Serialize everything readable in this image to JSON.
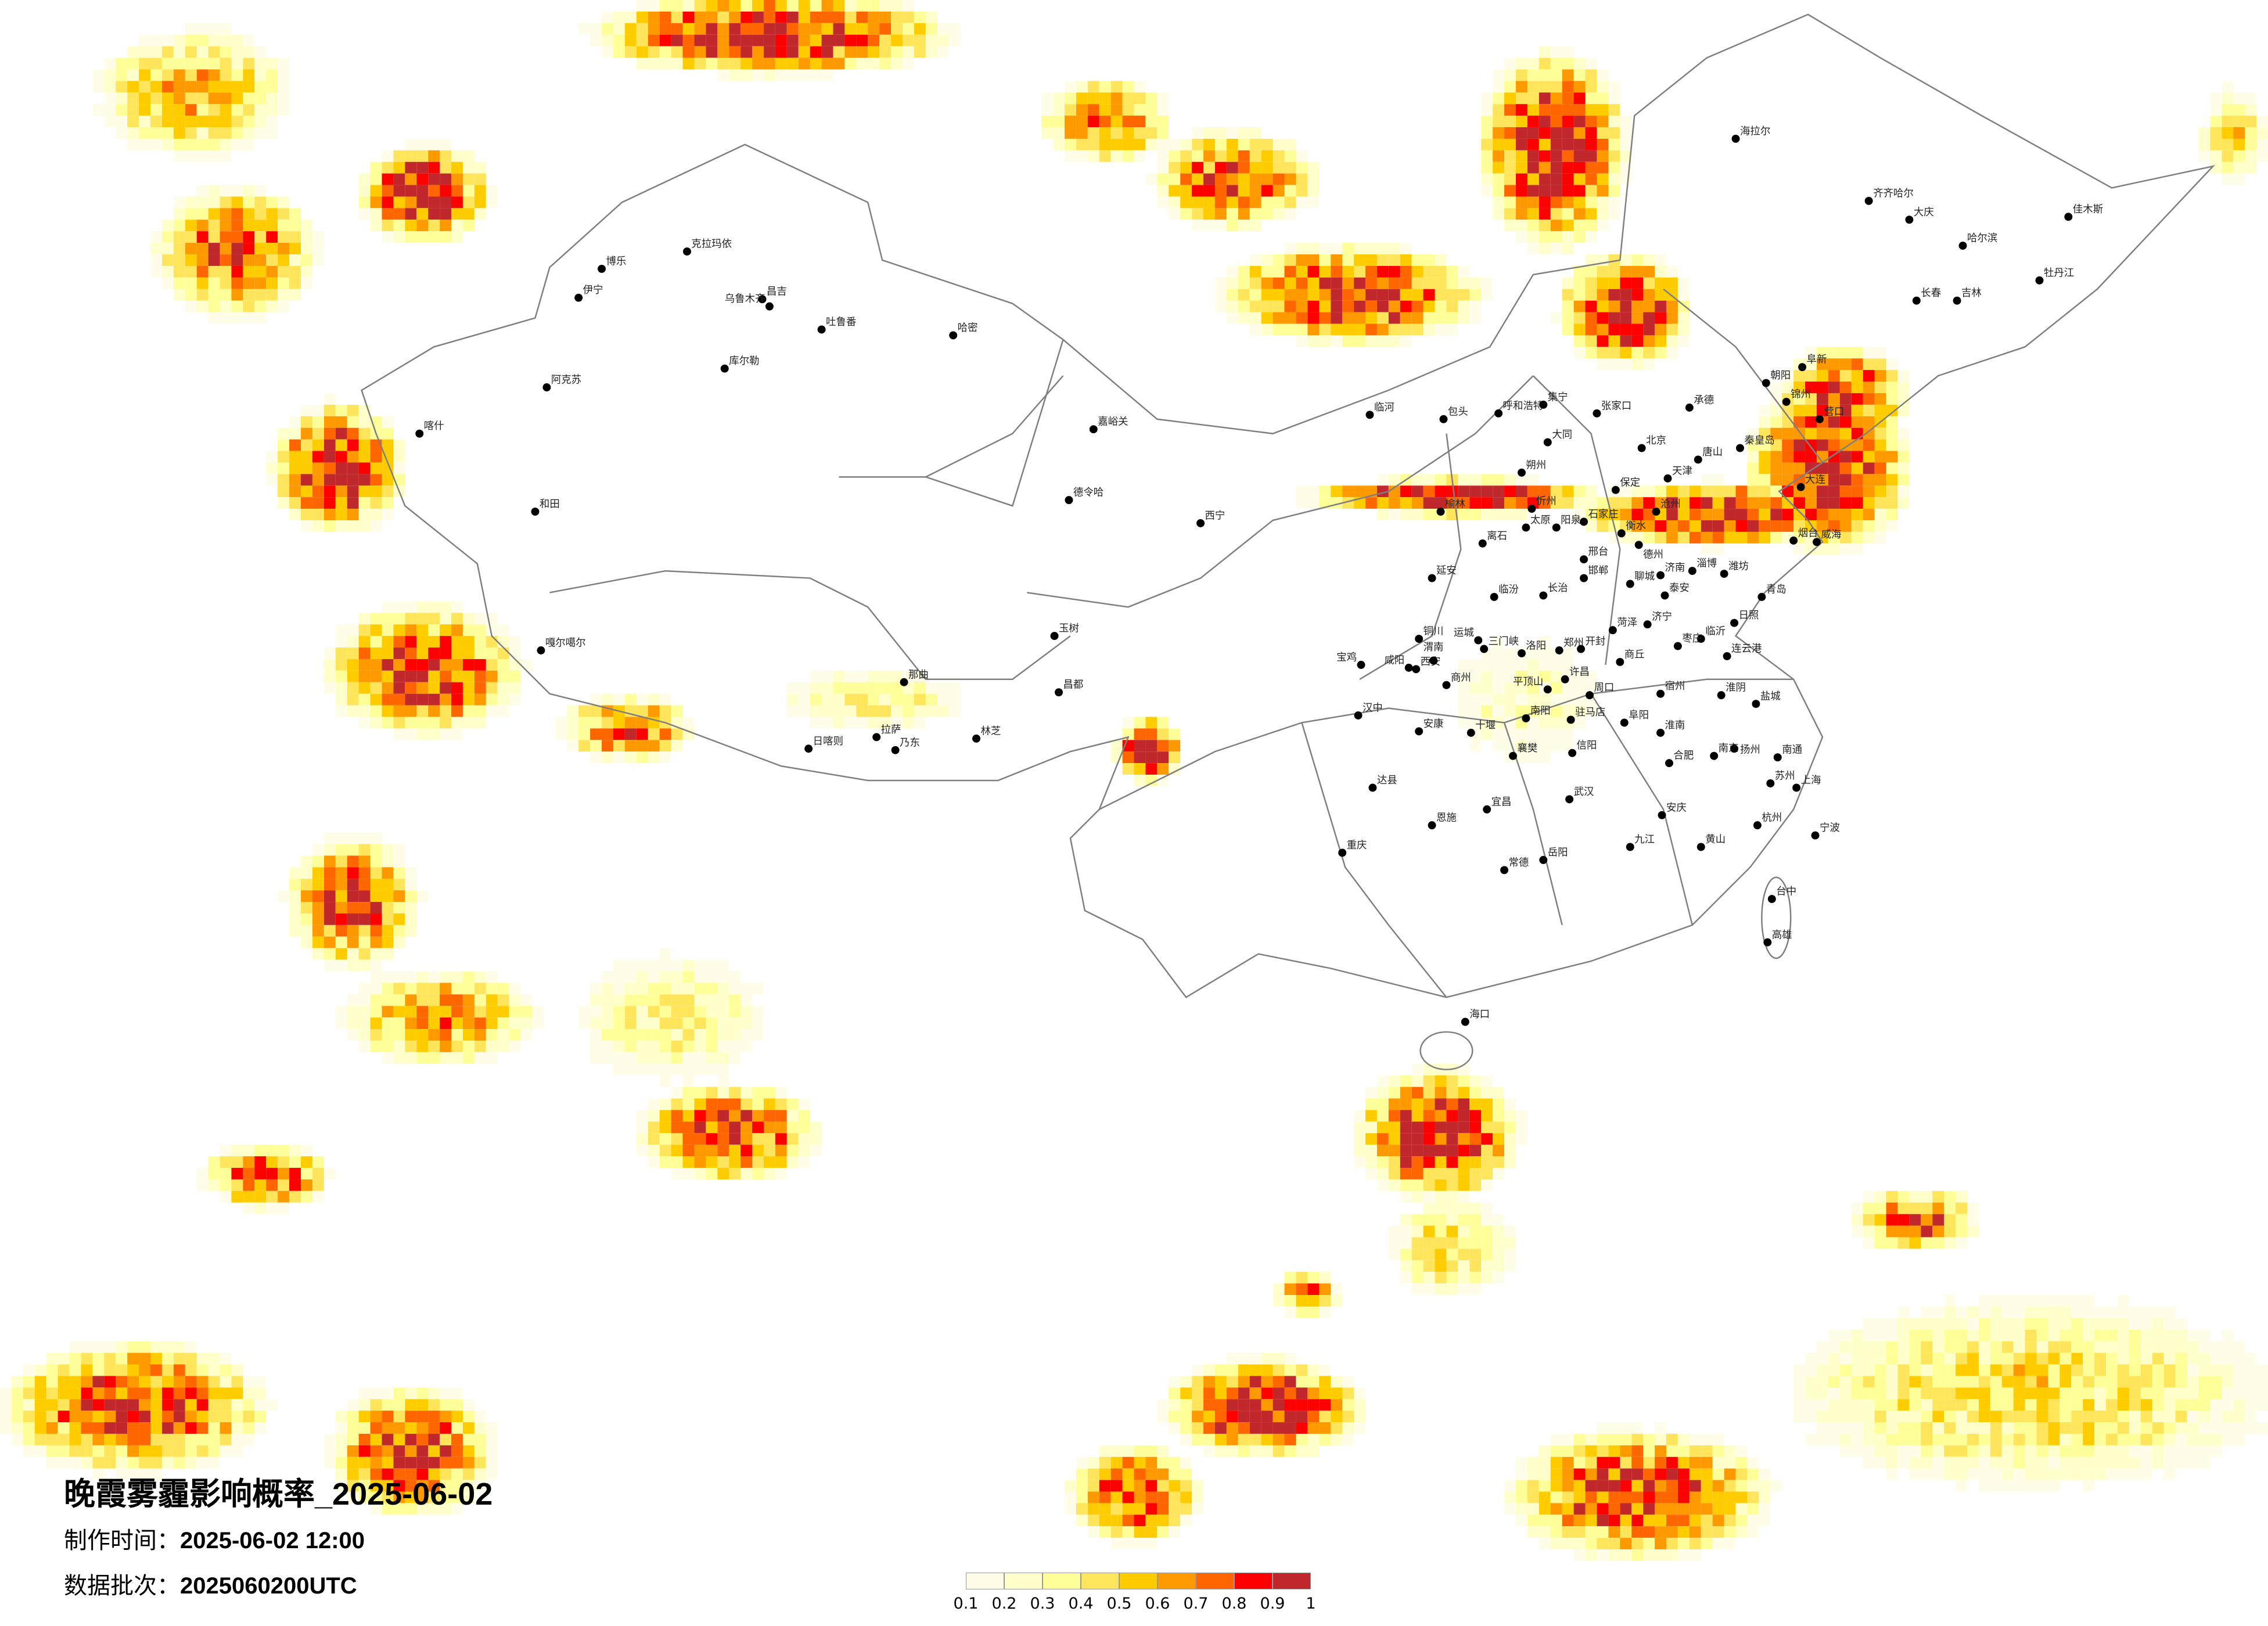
{
  "title": "晚霞雾霾影响概率_2025-06-02",
  "production_time_label": "制作时间：",
  "production_time": "2025-06-02 12:00",
  "data_batch_label": "数据批次：",
  "data_batch": "2025060200UTC",
  "legend": {
    "colors": [
      "#FFFDE8",
      "#FFFFCC",
      "#FFFF99",
      "#FFE55C",
      "#FFCC00",
      "#FF9900",
      "#FF6600",
      "#FF0000",
      "#C0282C"
    ],
    "ticks": [
      "0.1",
      "0.2",
      "0.3",
      "0.4",
      "0.5",
      "0.6",
      "0.7",
      "0.8",
      "0.9",
      "1"
    ]
  },
  "border_color": "#7f7f7f",
  "cities": [
    "博乐",
    "克拉玛依",
    "伊宁",
    "昌吉",
    "乌鲁木齐",
    "吐鲁番",
    "哈密",
    "库尔勒",
    "阿克苏",
    "喀什",
    "和田",
    "德令哈",
    "嘎尔噶尔",
    "玉树",
    "那曲",
    "昌都",
    "拉萨",
    "日喀则",
    "乃东",
    "林芝",
    "嘉峪关",
    "临河",
    "包头",
    "呼和浩特",
    "集宁",
    "张家口",
    "承德",
    "北京",
    "唐山",
    "天津",
    "保定",
    "大同",
    "朔州",
    "忻州",
    "太原",
    "阳泉",
    "石家庄",
    "衡水",
    "沧州",
    "德州",
    "济南",
    "淄博",
    "潍坊",
    "烟台",
    "威海",
    "青岛",
    "大连",
    "营口",
    "锦州",
    "秦皇岛",
    "朝阳",
    "阜新",
    "榆林",
    "离石",
    "延安",
    "邢台",
    "邯郸",
    "长治",
    "临汾",
    "聊城",
    "泰安",
    "济宁",
    "菏泽",
    "临沂",
    "日照",
    "枣庄",
    "连云港",
    "郑州",
    "开封",
    "洛阳",
    "三门峡",
    "运城",
    "西安",
    "咸阳",
    "渭南",
    "宝鸡",
    "铜川",
    "商丘",
    "许昌",
    "平顶山",
    "周口",
    "南阳",
    "驻马店",
    "信阳",
    "阜阳",
    "淮南",
    "宿州",
    "淮阴",
    "盐城",
    "合肥",
    "南京",
    "扬州",
    "南通",
    "上海",
    "苏州",
    "杭州",
    "宁波",
    "武汉",
    "宜昌",
    "襄樊",
    "十堰",
    "安康",
    "汉中",
    "商州",
    "达县",
    "恩施",
    "重庆",
    "岳阳",
    "九江",
    "黄山",
    "安庆",
    "常德",
    "哈尔滨",
    "长春",
    "吉林",
    "齐齐哈尔",
    "大庆",
    "海拉尔",
    "佳木斯",
    "牡丹江",
    "西宁",
    "海口",
    "台中",
    "高雄"
  ]
}
